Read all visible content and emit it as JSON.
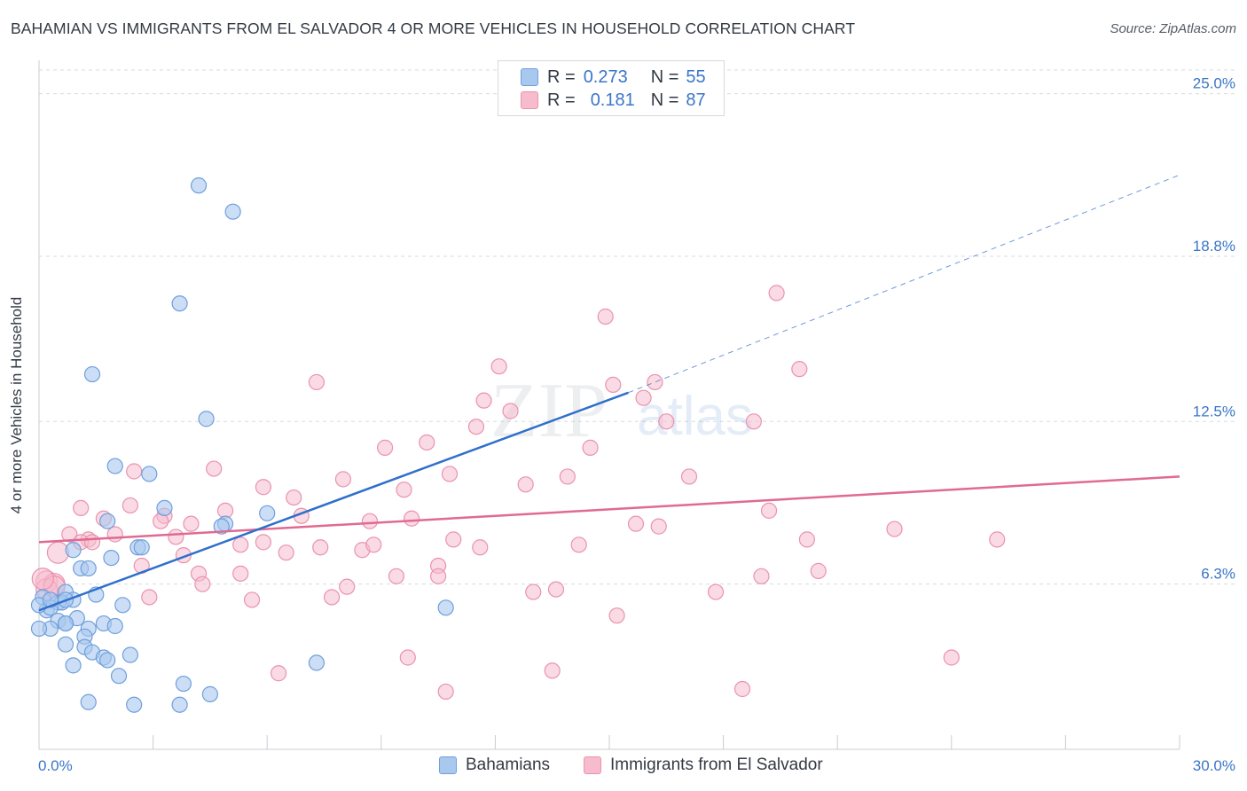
{
  "title": "BAHAMIAN VS IMMIGRANTS FROM EL SALVADOR 4 OR MORE VEHICLES IN HOUSEHOLD CORRELATION CHART",
  "source": "Source: ZipAtlas.com",
  "watermark": {
    "zip": "ZIP",
    "atlas": "atlas"
  },
  "colors": {
    "blue_fill": "#a9c8ee",
    "blue_stroke": "#6f9fdc",
    "blue_line": "#2f6fcc",
    "pink_fill": "#f6bccd",
    "pink_stroke": "#ea93ae",
    "pink_line": "#e06a92",
    "axis_value": "#3a76c8",
    "grid": "#d7dbe0"
  },
  "legend": {
    "rows": [
      {
        "r_label": "R =",
        "r_value": "0.273",
        "n_label": "N =",
        "n_value": "55"
      },
      {
        "r_label": "R =",
        "r_value": "0.181",
        "n_label": "N =",
        "n_value": "87"
      }
    ]
  },
  "bottom_legend": {
    "series1": "Bahamians",
    "series2": "Immigrants from El Salvador"
  },
  "chart_data": {
    "type": "scatter",
    "title": "BAHAMIAN VS IMMIGRANTS FROM EL SALVADOR 4 OR MORE VEHICLES IN HOUSEHOLD CORRELATION CHART",
    "xlabel": "",
    "ylabel": "4 or more Vehicles in Household",
    "xlim": [
      0,
      30
    ],
    "ylim": [
      0,
      25.9
    ],
    "x_tick_labels": [
      "0.0%",
      "30.0%"
    ],
    "y_ticks": [
      6.3,
      12.5,
      18.8,
      25.0
    ],
    "y_tick_labels": [
      "6.3%",
      "12.5%",
      "18.8%",
      "25.0%"
    ],
    "grid": true,
    "legend_position": "top-center",
    "series": [
      {
        "name": "Bahamians",
        "r": 0.273,
        "n": 55,
        "trend": {
          "x": [
            0,
            15.5
          ],
          "y": [
            5.3,
            13.6
          ],
          "extended_x": [
            15.5,
            30
          ],
          "extended_y": [
            13.6,
            21.9
          ]
        },
        "points": [
          [
            4.2,
            21.5
          ],
          [
            5.1,
            20.5
          ],
          [
            3.7,
            17.0
          ],
          [
            1.4,
            14.3
          ],
          [
            4.4,
            12.6
          ],
          [
            2.0,
            10.8
          ],
          [
            2.9,
            10.5
          ],
          [
            3.3,
            9.2
          ],
          [
            6.0,
            9.0
          ],
          [
            1.8,
            8.7
          ],
          [
            4.9,
            8.6
          ],
          [
            4.8,
            8.5
          ],
          [
            0.9,
            7.6
          ],
          [
            2.6,
            7.7
          ],
          [
            2.7,
            7.7
          ],
          [
            1.9,
            7.3
          ],
          [
            1.1,
            6.9
          ],
          [
            1.3,
            6.9
          ],
          [
            0.7,
            6.0
          ],
          [
            0.1,
            5.8
          ],
          [
            0.5,
            5.6
          ],
          [
            0.6,
            5.6
          ],
          [
            1.5,
            5.9
          ],
          [
            0.2,
            5.3
          ],
          [
            0.3,
            5.4
          ],
          [
            0.9,
            5.7
          ],
          [
            0.7,
            5.7
          ],
          [
            2.2,
            5.5
          ],
          [
            10.7,
            5.4
          ],
          [
            0.5,
            4.9
          ],
          [
            0.7,
            4.8
          ],
          [
            1.0,
            5.0
          ],
          [
            1.7,
            4.8
          ],
          [
            2.0,
            4.7
          ],
          [
            0.3,
            4.6
          ],
          [
            1.3,
            4.6
          ],
          [
            0.0,
            4.6
          ],
          [
            1.2,
            4.3
          ],
          [
            0.7,
            4.0
          ],
          [
            1.2,
            3.9
          ],
          [
            1.4,
            3.7
          ],
          [
            2.4,
            3.6
          ],
          [
            1.7,
            3.5
          ],
          [
            1.8,
            3.4
          ],
          [
            7.3,
            3.3
          ],
          [
            0.9,
            3.2
          ],
          [
            2.1,
            2.8
          ],
          [
            3.8,
            2.5
          ],
          [
            4.5,
            2.1
          ],
          [
            1.3,
            1.8
          ],
          [
            2.5,
            1.7
          ],
          [
            3.7,
            1.7
          ],
          [
            0.0,
            5.5
          ],
          [
            0.3,
            5.7
          ],
          [
            0.7,
            4.8
          ]
        ]
      },
      {
        "name": "Immigrants from El Salvador",
        "r": 0.181,
        "n": 87,
        "trend": {
          "x": [
            0,
            30
          ],
          "y": [
            7.9,
            10.4
          ]
        },
        "points": [
          [
            19.4,
            17.4
          ],
          [
            14.9,
            16.5
          ],
          [
            12.1,
            14.6
          ],
          [
            20.0,
            14.5
          ],
          [
            7.3,
            14.0
          ],
          [
            15.1,
            13.9
          ],
          [
            16.2,
            14.0
          ],
          [
            11.7,
            13.3
          ],
          [
            12.4,
            12.9
          ],
          [
            15.9,
            13.4
          ],
          [
            16.5,
            12.5
          ],
          [
            18.8,
            12.5
          ],
          [
            11.5,
            12.3
          ],
          [
            10.2,
            11.7
          ],
          [
            9.1,
            11.5
          ],
          [
            14.5,
            11.5
          ],
          [
            2.5,
            10.6
          ],
          [
            4.6,
            10.7
          ],
          [
            10.8,
            10.5
          ],
          [
            13.9,
            10.4
          ],
          [
            8.0,
            10.3
          ],
          [
            17.1,
            10.4
          ],
          [
            5.9,
            10.0
          ],
          [
            9.6,
            9.9
          ],
          [
            12.8,
            10.1
          ],
          [
            6.7,
            9.6
          ],
          [
            2.4,
            9.3
          ],
          [
            4.9,
            9.1
          ],
          [
            1.1,
            9.2
          ],
          [
            6.9,
            8.9
          ],
          [
            19.2,
            9.1
          ],
          [
            3.3,
            8.9
          ],
          [
            1.7,
            8.8
          ],
          [
            3.2,
            8.7
          ],
          [
            4.0,
            8.6
          ],
          [
            8.7,
            8.7
          ],
          [
            9.8,
            8.8
          ],
          [
            15.7,
            8.6
          ],
          [
            16.3,
            8.5
          ],
          [
            22.5,
            8.4
          ],
          [
            0.8,
            8.2
          ],
          [
            1.3,
            8.0
          ],
          [
            2.0,
            8.2
          ],
          [
            3.6,
            8.1
          ],
          [
            10.9,
            8.0
          ],
          [
            20.2,
            8.0
          ],
          [
            25.2,
            8.0
          ],
          [
            1.1,
            7.9
          ],
          [
            1.4,
            7.9
          ],
          [
            5.3,
            7.8
          ],
          [
            5.9,
            7.9
          ],
          [
            6.5,
            7.5
          ],
          [
            7.4,
            7.7
          ],
          [
            8.5,
            7.6
          ],
          [
            8.8,
            7.8
          ],
          [
            11.6,
            7.7
          ],
          [
            14.2,
            7.8
          ],
          [
            0.5,
            7.5
          ],
          [
            3.8,
            7.4
          ],
          [
            2.7,
            7.0
          ],
          [
            10.5,
            7.0
          ],
          [
            4.2,
            6.7
          ],
          [
            5.3,
            6.7
          ],
          [
            9.4,
            6.6
          ],
          [
            10.5,
            6.6
          ],
          [
            19.0,
            6.6
          ],
          [
            20.5,
            6.8
          ],
          [
            0.2,
            6.4
          ],
          [
            0.4,
            6.3
          ],
          [
            4.3,
            6.3
          ],
          [
            8.1,
            6.2
          ],
          [
            7.7,
            5.8
          ],
          [
            13.0,
            6.0
          ],
          [
            13.6,
            6.1
          ],
          [
            17.8,
            6.0
          ],
          [
            2.9,
            5.8
          ],
          [
            5.6,
            5.7
          ],
          [
            0.2,
            6.1
          ],
          [
            0.4,
            6.2
          ],
          [
            15.2,
            5.1
          ],
          [
            9.7,
            3.5
          ],
          [
            24.0,
            3.5
          ],
          [
            6.3,
            2.9
          ],
          [
            13.5,
            3.0
          ],
          [
            10.7,
            2.2
          ],
          [
            18.5,
            2.3
          ],
          [
            0.1,
            6.5
          ]
        ]
      }
    ]
  }
}
